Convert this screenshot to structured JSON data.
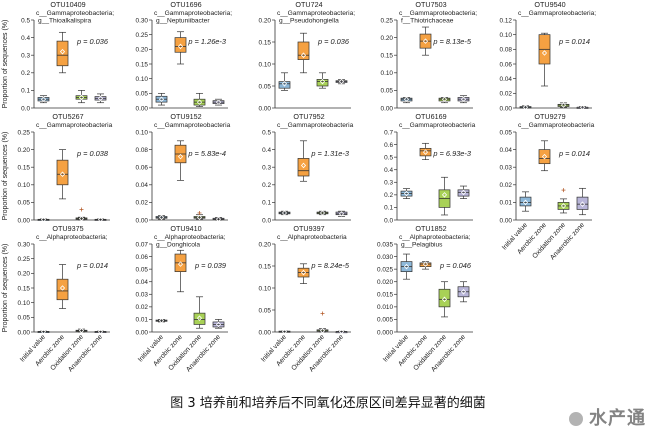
{
  "figure": {
    "caption": "图 3 培养前和培养后不同氧化还原区间差异显著的细菌",
    "watermark": "水产通"
  },
  "colors": {
    "initial": "#8db8d9",
    "aerobic": "#f5a142",
    "oxidation": "#a8d156",
    "anaerobic": "#b8b5d8"
  },
  "chart_data": [
    {
      "type": "box",
      "title": "OTU10409",
      "taxon": [
        "c__Gammaproteobacteria;",
        "g__Thioalkalispira"
      ],
      "p": "p = 0.036",
      "ylim": [
        0,
        0.5
      ],
      "yticks": [
        0,
        0.1,
        0.2,
        0.3,
        0.4,
        0.5
      ],
      "ytick_labels": [
        "0.0",
        "0.1",
        "0.2",
        "0.3",
        "0.4",
        "0.5"
      ],
      "ylabel": "Proportion of sequences (%)",
      "categories": [],
      "boxes": [
        {
          "min": 0.03,
          "q1": 0.04,
          "median": 0.05,
          "q3": 0.06,
          "max": 0.07,
          "mean": 0.05
        },
        {
          "min": 0.2,
          "q1": 0.24,
          "median": 0.3,
          "q3": 0.38,
          "max": 0.43,
          "mean": 0.32
        },
        {
          "min": 0.03,
          "q1": 0.05,
          "median": 0.06,
          "q3": 0.07,
          "max": 0.1,
          "mean": 0.06
        },
        {
          "min": 0.03,
          "q1": 0.045,
          "median": 0.055,
          "q3": 0.065,
          "max": 0.08,
          "mean": 0.055
        }
      ]
    },
    {
      "type": "box",
      "title": "OTU1696",
      "taxon": [
        "c__Gammaproteobacteria;",
        "g__Neptuniibacter"
      ],
      "p": "p = 1.26e-3",
      "ylim": [
        0,
        0.3
      ],
      "yticks": [
        0,
        0.05,
        0.1,
        0.15,
        0.2,
        0.25,
        0.3
      ],
      "ytick_labels": [
        "0.00",
        "0.05",
        "0.10",
        "0.15",
        "0.20",
        "0.25",
        "0.30"
      ],
      "ylabel": "",
      "categories": [],
      "boxes": [
        {
          "min": 0.01,
          "q1": 0.02,
          "median": 0.03,
          "q3": 0.04,
          "max": 0.05,
          "mean": 0.03
        },
        {
          "min": 0.15,
          "q1": 0.19,
          "median": 0.21,
          "q3": 0.24,
          "max": 0.26,
          "mean": 0.21
        },
        {
          "min": 0.005,
          "q1": 0.01,
          "median": 0.02,
          "q3": 0.03,
          "max": 0.05,
          "mean": 0.02
        },
        {
          "min": 0.01,
          "q1": 0.015,
          "median": 0.02,
          "q3": 0.025,
          "max": 0.03,
          "mean": 0.02
        }
      ]
    },
    {
      "type": "box",
      "title": "OTU724",
      "taxon": [
        "c__Gammaproteobacteria;",
        "g__Pseudohongiella"
      ],
      "p": "p = 0.036",
      "ylim": [
        0,
        0.2
      ],
      "yticks": [
        0,
        0.05,
        0.1,
        0.15,
        0.2
      ],
      "ytick_labels": [
        "0.00",
        "0.05",
        "0.10",
        "0.15",
        "0.20"
      ],
      "ylabel": "",
      "categories": [],
      "boxes": [
        {
          "min": 0.04,
          "q1": 0.045,
          "median": 0.055,
          "q3": 0.06,
          "max": 0.08,
          "mean": 0.055
        },
        {
          "min": 0.08,
          "q1": 0.11,
          "median": 0.12,
          "q3": 0.15,
          "max": 0.17,
          "mean": 0.12
        },
        {
          "min": 0.045,
          "q1": 0.05,
          "median": 0.06,
          "q3": 0.065,
          "max": 0.08,
          "mean": 0.06
        },
        {
          "min": 0.055,
          "q1": 0.058,
          "median": 0.06,
          "q3": 0.062,
          "max": 0.065,
          "mean": 0.06
        }
      ]
    },
    {
      "type": "box",
      "title": "OTU7503",
      "taxon": [
        "c__Gammaproteobacteria;",
        "f__Thiotrichaceae"
      ],
      "p": "p = 8.13e-5",
      "ylim": [
        0,
        0.25
      ],
      "yticks": [
        0,
        0.05,
        0.1,
        0.15,
        0.2,
        0.25
      ],
      "ytick_labels": [
        "0.00",
        "0.05",
        "0.10",
        "0.15",
        "0.20",
        "0.25"
      ],
      "ylabel": "",
      "categories": [],
      "boxes": [
        {
          "min": 0.015,
          "q1": 0.02,
          "median": 0.025,
          "q3": 0.028,
          "max": 0.03,
          "mean": 0.025
        },
        {
          "min": 0.15,
          "q1": 0.17,
          "median": 0.19,
          "q3": 0.21,
          "max": 0.23,
          "mean": 0.19
        },
        {
          "min": 0.015,
          "q1": 0.02,
          "median": 0.025,
          "q3": 0.028,
          "max": 0.03,
          "mean": 0.025
        },
        {
          "min": 0.015,
          "q1": 0.02,
          "median": 0.025,
          "q3": 0.03,
          "max": 0.035,
          "mean": 0.025
        }
      ]
    },
    {
      "type": "box",
      "title": "OTU9540",
      "taxon": [
        "c__Gammaproteobacteria;"
      ],
      "p": "p = 0.014",
      "ylim": [
        0,
        0.12
      ],
      "yticks": [
        0,
        0.02,
        0.04,
        0.06,
        0.08,
        0.1,
        0.12
      ],
      "ytick_labels": [
        "0.00",
        "0.02",
        "0.04",
        "0.06",
        "0.08",
        "0.10",
        "0.12"
      ],
      "ylabel": "",
      "categories": [],
      "boxes": [
        {
          "min": 0,
          "q1": 0,
          "median": 0.001,
          "q3": 0.002,
          "max": 0.003,
          "mean": 0.001
        },
        {
          "min": 0.03,
          "q1": 0.06,
          "median": 0.08,
          "q3": 0.1,
          "max": 0.102,
          "mean": 0.075
        },
        {
          "min": 0.001,
          "q1": 0.002,
          "median": 0.004,
          "q3": 0.005,
          "max": 0.007,
          "mean": 0.004
        },
        {
          "min": 0,
          "q1": 0,
          "median": 0.001,
          "q3": 0.001,
          "max": 0.002,
          "mean": 0.001
        }
      ]
    },
    {
      "type": "box",
      "title": "OTU5267",
      "taxon": [
        "c__Gammaproteobacteria"
      ],
      "p": "p = 0.038",
      "ylim": [
        0,
        0.25
      ],
      "yticks": [
        0,
        0.05,
        0.1,
        0.15,
        0.2,
        0.25
      ],
      "ytick_labels": [
        "0.00",
        "0.05",
        "0.10",
        "0.15",
        "0.20",
        "0.25"
      ],
      "ylabel": "Proportion of sequences (%)",
      "categories": [],
      "boxes": [
        {
          "min": 0,
          "q1": 0,
          "median": 0.001,
          "q3": 0.002,
          "max": 0.003,
          "mean": 0.001
        },
        {
          "min": 0.06,
          "q1": 0.1,
          "median": 0.13,
          "q3": 0.17,
          "max": 0.2,
          "mean": 0.13
        },
        {
          "min": 0,
          "q1": 0.002,
          "median": 0.004,
          "q3": 0.006,
          "max": 0.008,
          "mean": 0.004,
          "outliers": [
            0.03
          ]
        },
        {
          "min": 0,
          "q1": 0,
          "median": 0.001,
          "q3": 0.002,
          "max": 0.003,
          "mean": 0.001
        }
      ]
    },
    {
      "type": "box",
      "title": "OTU9152",
      "taxon": [
        "c__Gammaproteobacteria"
      ],
      "p": "p = 5.83e-4",
      "ylim": [
        0,
        0.1
      ],
      "yticks": [
        0,
        0.02,
        0.04,
        0.06,
        0.08,
        0.1
      ],
      "ytick_labels": [
        "0.00",
        "0.02",
        "0.04",
        "0.06",
        "0.08",
        "0.10"
      ],
      "ylabel": "",
      "categories": [],
      "boxes": [
        {
          "min": 0.001,
          "q1": 0.002,
          "median": 0.003,
          "q3": 0.004,
          "max": 0.005,
          "mean": 0.003
        },
        {
          "min": 0.045,
          "q1": 0.065,
          "median": 0.075,
          "q3": 0.085,
          "max": 0.09,
          "mean": 0.072
        },
        {
          "min": 0.001,
          "q1": 0.002,
          "median": 0.003,
          "q3": 0.004,
          "max": 0.006,
          "mean": 0.003,
          "outliers": [
            0.008
          ]
        },
        {
          "min": 0,
          "q1": 0.001,
          "median": 0.001,
          "q3": 0.002,
          "max": 0.003,
          "mean": 0.001
        }
      ]
    },
    {
      "type": "box",
      "title": "OTU7952",
      "taxon": [
        "c__Gammaproteobacteria"
      ],
      "p": "p = 1.31e-3",
      "ylim": [
        0,
        0.5
      ],
      "yticks": [
        0,
        0.1,
        0.2,
        0.3,
        0.4,
        0.5
      ],
      "ytick_labels": [
        "0.0",
        "0.1",
        "0.2",
        "0.3",
        "0.4",
        "0.5"
      ],
      "ylabel": "",
      "categories": [],
      "boxes": [
        {
          "min": 0.03,
          "q1": 0.035,
          "median": 0.04,
          "q3": 0.045,
          "max": 0.05,
          "mean": 0.04
        },
        {
          "min": 0.22,
          "q1": 0.25,
          "median": 0.28,
          "q3": 0.35,
          "max": 0.45,
          "mean": 0.31
        },
        {
          "min": 0.03,
          "q1": 0.035,
          "median": 0.04,
          "q3": 0.045,
          "max": 0.05,
          "mean": 0.04
        },
        {
          "min": 0.02,
          "q1": 0.03,
          "median": 0.035,
          "q3": 0.045,
          "max": 0.05,
          "mean": 0.035
        }
      ]
    },
    {
      "type": "box",
      "title": "OTU6169",
      "taxon": [
        "c__Gammaproteobacteria"
      ],
      "p": "p = 6.93e-3",
      "ylim": [
        0,
        0.7
      ],
      "yticks": [
        0,
        0.1,
        0.2,
        0.3,
        0.4,
        0.5,
        0.6,
        0.7
      ],
      "ytick_labels": [
        "0.0",
        "0.1",
        "0.2",
        "0.3",
        "0.4",
        "0.5",
        "0.6",
        "0.7"
      ],
      "ylabel": "",
      "categories": [],
      "boxes": [
        {
          "min": 0.17,
          "q1": 0.19,
          "median": 0.21,
          "q3": 0.23,
          "max": 0.25,
          "mean": 0.21
        },
        {
          "min": 0.48,
          "q1": 0.51,
          "median": 0.55,
          "q3": 0.57,
          "max": 0.61,
          "mean": 0.54
        },
        {
          "min": 0.04,
          "q1": 0.1,
          "median": 0.17,
          "q3": 0.24,
          "max": 0.34,
          "mean": 0.2
        },
        {
          "min": 0.17,
          "q1": 0.19,
          "median": 0.22,
          "q3": 0.24,
          "max": 0.27,
          "mean": 0.22
        }
      ]
    },
    {
      "type": "box",
      "title": "OTU9279",
      "taxon": [
        "c__Gammaproteobacteria"
      ],
      "p": "p = 0.014",
      "ylim": [
        0,
        0.05
      ],
      "yticks": [
        0,
        0.01,
        0.02,
        0.03,
        0.04,
        0.05
      ],
      "ytick_labels": [
        "0.00",
        "0.01",
        "0.02",
        "0.03",
        "0.04",
        "0.05"
      ],
      "ylabel": "",
      "categories": [
        "Initial value",
        "Aerobic zone",
        "Oxidation zone",
        "Anaerobic zone"
      ],
      "boxes": [
        {
          "min": 0.005,
          "q1": 0.008,
          "median": 0.01,
          "q3": 0.013,
          "max": 0.016,
          "mean": 0.01
        },
        {
          "min": 0.028,
          "q1": 0.032,
          "median": 0.035,
          "q3": 0.04,
          "max": 0.045,
          "mean": 0.036
        },
        {
          "min": 0.004,
          "q1": 0.006,
          "median": 0.008,
          "q3": 0.01,
          "max": 0.012,
          "mean": 0.008,
          "outliers": [
            0.017
          ]
        },
        {
          "min": 0.003,
          "q1": 0.006,
          "median": 0.009,
          "q3": 0.013,
          "max": 0.018,
          "mean": 0.009
        }
      ]
    },
    {
      "type": "box",
      "title": "OTU9375",
      "taxon": [
        "c__Alphaproteobacteria;"
      ],
      "p": "p = 0.014",
      "ylim": [
        0,
        0.3
      ],
      "yticks": [
        0,
        0.05,
        0.1,
        0.15,
        0.2,
        0.25,
        0.3
      ],
      "ytick_labels": [
        "0.00",
        "0.05",
        "0.10",
        "0.15",
        "0.20",
        "0.25",
        "0.30"
      ],
      "ylabel": "Proportion of sequences (%)",
      "categories": [
        "Initial value",
        "Aerobic zone",
        "Oxidation zone",
        "Anaerobic zone"
      ],
      "boxes": [
        {
          "min": 0,
          "q1": 0,
          "median": 0.001,
          "q3": 0.002,
          "max": 0.003,
          "mean": 0.001
        },
        {
          "min": 0.08,
          "q1": 0.11,
          "median": 0.14,
          "q3": 0.18,
          "max": 0.23,
          "mean": 0.15
        },
        {
          "min": 0,
          "q1": 0.002,
          "median": 0.004,
          "q3": 0.006,
          "max": 0.01,
          "mean": 0.005
        },
        {
          "min": 0,
          "q1": 0,
          "median": 0.001,
          "q3": 0.002,
          "max": 0.003,
          "mean": 0.001
        }
      ]
    },
    {
      "type": "box",
      "title": "OTU9410",
      "taxon": [
        "c__Alphaproteobacteria;",
        "g__Donghicola"
      ],
      "p": "p = 0.039",
      "ylim": [
        0,
        0.07
      ],
      "yticks": [
        0,
        0.01,
        0.02,
        0.03,
        0.04,
        0.05,
        0.06,
        0.07
      ],
      "ytick_labels": [
        "0.00",
        "0.01",
        "0.02",
        "0.03",
        "0.04",
        "0.05",
        "0.06",
        "0.07"
      ],
      "ylabel": "",
      "categories": [
        "Initial value",
        "Aerobic zone",
        "Oxidation zone",
        "Anaerobic zone"
      ],
      "boxes": [
        {
          "min": 0.008,
          "q1": 0.0085,
          "median": 0.009,
          "q3": 0.0095,
          "max": 0.01,
          "mean": 0.009
        },
        {
          "min": 0.032,
          "q1": 0.048,
          "median": 0.055,
          "q3": 0.062,
          "max": 0.065,
          "mean": 0.054
        },
        {
          "min": 0.003,
          "q1": 0.006,
          "median": 0.01,
          "q3": 0.015,
          "max": 0.028,
          "mean": 0.011
        },
        {
          "min": 0.003,
          "q1": 0.004,
          "median": 0.006,
          "q3": 0.008,
          "max": 0.01,
          "mean": 0.006
        }
      ]
    },
    {
      "type": "box",
      "title": "OTU9397",
      "taxon": [
        "c__Alphaproteobacteria"
      ],
      "p": "p = 8.24e-5",
      "ylim": [
        0,
        0.2
      ],
      "yticks": [
        0,
        0.05,
        0.1,
        0.15,
        0.2
      ],
      "ytick_labels": [
        "0.00",
        "0.05",
        "0.10",
        "0.15",
        "0.20"
      ],
      "ylabel": "",
      "categories": [
        "Initial value",
        "Aerobic zone",
        "Oxidation zone",
        "Anaerobic zone"
      ],
      "boxes": [
        {
          "min": 0,
          "q1": 0,
          "median": 0.001,
          "q3": 0.002,
          "max": 0.002,
          "mean": 0.001
        },
        {
          "min": 0.11,
          "q1": 0.125,
          "median": 0.135,
          "q3": 0.145,
          "max": 0.155,
          "mean": 0.135
        },
        {
          "min": 0,
          "q1": 0.002,
          "median": 0.003,
          "q3": 0.005,
          "max": 0.008,
          "mean": 0.003,
          "outliers": [
            0.042
          ]
        },
        {
          "min": 0,
          "q1": 0,
          "median": 0.001,
          "q3": 0.001,
          "max": 0.002,
          "mean": 0.001
        }
      ]
    },
    {
      "type": "box",
      "title": "OTU1852",
      "taxon": [
        "c__Alphaproteobacteria;",
        "g__Pelagibius"
      ],
      "p": "p = 0.046",
      "ylim": [
        0,
        0.035
      ],
      "yticks": [
        0,
        0.005,
        0.01,
        0.015,
        0.02,
        0.025,
        0.03,
        0.035
      ],
      "ytick_labels": [
        "0.000",
        "0.005",
        "0.010",
        "0.015",
        "0.020",
        "0.025",
        "0.030",
        "0.035"
      ],
      "ylabel": "",
      "categories": [
        "Initial value",
        "Aerobic zone",
        "Oxidation zone",
        "Anaerobic zone"
      ],
      "boxes": [
        {
          "min": 0.021,
          "q1": 0.024,
          "median": 0.026,
          "q3": 0.028,
          "max": 0.031,
          "mean": 0.026
        },
        {
          "min": 0.025,
          "q1": 0.026,
          "median": 0.027,
          "q3": 0.0275,
          "max": 0.028,
          "mean": 0.027
        },
        {
          "min": 0.006,
          "q1": 0.01,
          "median": 0.013,
          "q3": 0.017,
          "max": 0.02,
          "mean": 0.013
        },
        {
          "min": 0.012,
          "q1": 0.014,
          "median": 0.016,
          "q3": 0.018,
          "max": 0.02,
          "mean": 0.016
        }
      ]
    }
  ]
}
